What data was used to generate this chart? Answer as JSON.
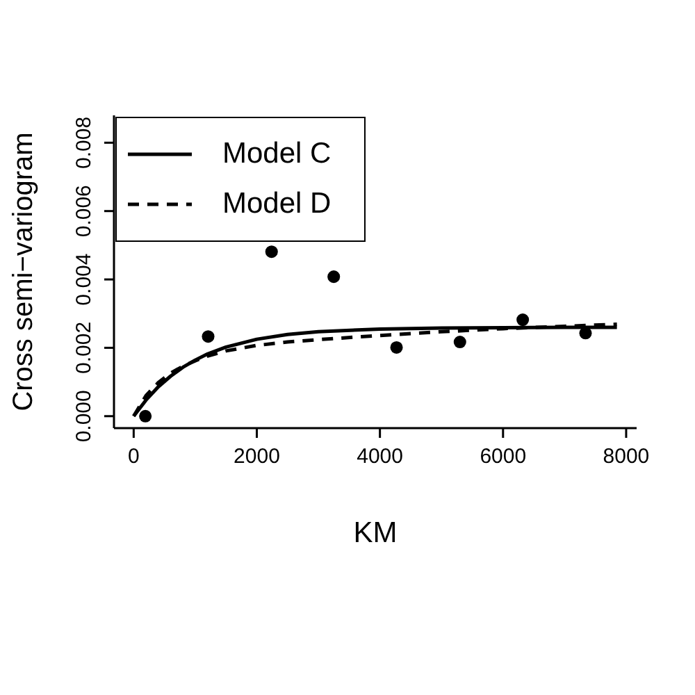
{
  "chart_data": {
    "type": "scatter",
    "xlabel": "KM",
    "ylabel": "Cross semi−variogram",
    "xlim": [
      -320,
      8170
    ],
    "ylim": [
      -0.00035,
      0.0088
    ],
    "xticks": [
      0,
      2000,
      4000,
      6000,
      8000
    ],
    "yticks": [
      {
        "value": 0,
        "label": "0.000"
      },
      {
        "value": 0.002,
        "label": "0.002"
      },
      {
        "value": 0.004,
        "label": "0.004"
      },
      {
        "value": 0.006,
        "label": "0.006"
      },
      {
        "value": 0.008,
        "label": "0.008"
      }
    ],
    "grid": false,
    "legend": "top left",
    "marker": "circle",
    "series": [
      {
        "color": "#000000",
        "x": [
          190,
          1210,
          2240,
          3250,
          4270,
          5300,
          6320,
          7340
        ],
        "values": [
          0,
          0.00233,
          0.00481,
          0.00408,
          0.00201,
          0.00217,
          0.00282,
          0.00243
        ]
      },
      {
        "type": "line",
        "name": "Model C",
        "color": "#000000",
        "line_style": "solid",
        "marker": "none",
        "x": [
          0,
          200,
          400,
          600,
          800,
          1000,
          1200,
          1500,
          2000,
          2500,
          3000,
          4000,
          5000,
          6000,
          7000,
          7850
        ],
        "values": [
          0,
          0.00047,
          0.00086,
          0.00117,
          0.00143,
          0.00164,
          0.00182,
          0.00202,
          0.00225,
          0.00239,
          0.00247,
          0.00255,
          0.00258,
          0.00259,
          0.0026,
          0.0026
        ]
      },
      {
        "type": "line",
        "name": "Model D",
        "color": "#000000",
        "line_style": "dashed",
        "marker": "none",
        "x": [
          0,
          200,
          400,
          600,
          800,
          1000,
          1200,
          1500,
          2000,
          2500,
          3000,
          4000,
          5000,
          6000,
          7000,
          7850
        ],
        "values": [
          0,
          0.0006,
          0.00098,
          0.00126,
          0.00146,
          0.00162,
          0.00176,
          0.00191,
          0.00207,
          0.00217,
          0.00224,
          0.00236,
          0.00247,
          0.00256,
          0.00263,
          0.00269
        ]
      }
    ]
  }
}
